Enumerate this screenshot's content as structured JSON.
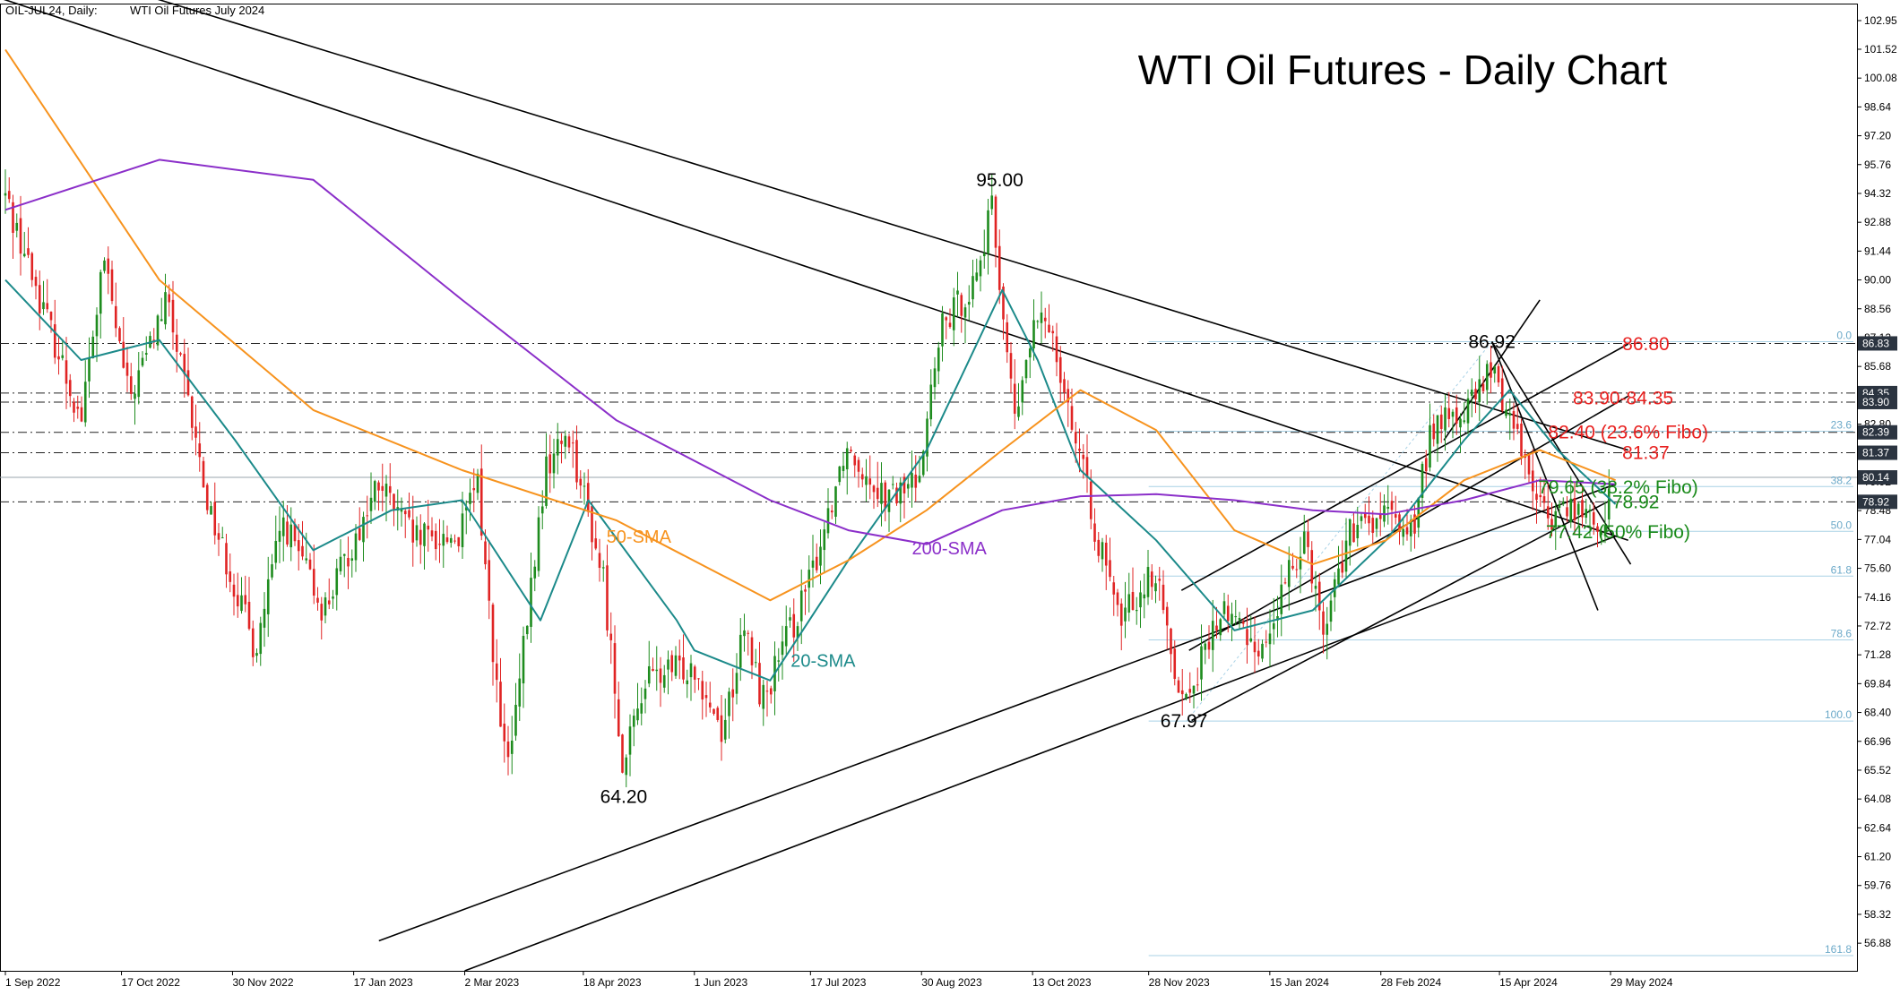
{
  "chart_data": {
    "type": "candlestick",
    "title": "WTI Oil Futures - Daily Chart",
    "header": {
      "symbol": "OIL-JUL24, Daily:",
      "description": "WTI Oil Futures July 2024"
    },
    "x_ticks": [
      "1 Sep 2022",
      "17 Oct 2022",
      "30 Nov 2022",
      "17 Jan 2023",
      "2 Mar 2023",
      "18 Apr 2023",
      "1 Jun 2023",
      "17 Jul 2023",
      "30 Aug 2023",
      "13 Oct 2023",
      "28 Nov 2023",
      "15 Jan 2024",
      "28 Feb 2024",
      "15 Apr 2024",
      "29 May 2024"
    ],
    "y_range": [
      55.5,
      103.8
    ],
    "y_ticks": [
      102.95,
      101.52,
      100.08,
      98.64,
      97.2,
      95.76,
      94.32,
      92.88,
      91.44,
      90.0,
      88.56,
      87.12,
      85.68,
      84.24,
      82.8,
      81.36,
      79.92,
      78.48,
      77.04,
      75.6,
      74.16,
      72.72,
      71.28,
      69.84,
      68.4,
      66.96,
      65.52,
      64.08,
      62.64,
      61.2,
      59.76,
      58.32,
      56.88
    ],
    "price_marks": [
      {
        "label": "86.83",
        "value": 86.83
      },
      {
        "label": "84.35",
        "value": 84.35
      },
      {
        "label": "83.90",
        "value": 83.9
      },
      {
        "label": "82.39",
        "value": 82.39
      },
      {
        "label": "81.37",
        "value": 81.37
      },
      {
        "label": "80.14",
        "value": 80.14
      },
      {
        "label": "78.92",
        "value": 78.92
      }
    ],
    "anchors": [
      {
        "date": "1 Sep 2022",
        "value": 94.2
      },
      {
        "date": "1 Oct 2022",
        "value": 83.0
      },
      {
        "date": "10 Oct 2022",
        "value": 91.0
      },
      {
        "date": "20 Oct 2022",
        "value": 84.0
      },
      {
        "date": "4 Nov 2022",
        "value": 89.0
      },
      {
        "date": "20 Nov 2022",
        "value": 79.0
      },
      {
        "date": "9 Dec 2022",
        "value": 71.5
      },
      {
        "date": "20 Dec 2022",
        "value": 78.0
      },
      {
        "date": "5 Jan 2023",
        "value": 73.5
      },
      {
        "date": "27 Jan 2023",
        "value": 79.8
      },
      {
        "date": "10 Feb 2023",
        "value": 77.0
      },
      {
        "date": "28 Feb 2023",
        "value": 77.2
      },
      {
        "date": "7 Mar 2023",
        "value": 80.0
      },
      {
        "date": "17 Mar 2023",
        "value": 66.5
      },
      {
        "date": "20 Mar 2023",
        "value": 66.0
      },
      {
        "date": "3 Apr 2023",
        "value": 80.5
      },
      {
        "date": "12 Apr 2023",
        "value": 82.5
      },
      {
        "date": "26 Apr 2023",
        "value": 75.0
      },
      {
        "date": "4 May 2023",
        "value": 65.5
      },
      {
        "date": "12 May 2023",
        "value": 70.0
      },
      {
        "date": "1 Jun 2023",
        "value": 70.8
      },
      {
        "date": "12 Jun 2023",
        "value": 67.5
      },
      {
        "date": "21 Jun 2023",
        "value": 72.5
      },
      {
        "date": "28 Jun 2023",
        "value": 69.0
      },
      {
        "date": "17 Jul 2023",
        "value": 75.0
      },
      {
        "date": "31 Jul 2023",
        "value": 81.8
      },
      {
        "date": "17 Aug 2023",
        "value": 79.0
      },
      {
        "date": "28 Aug 2023",
        "value": 80.0
      },
      {
        "date": "7 Sep 2023",
        "value": 87.5
      },
      {
        "date": "20 Sep 2023",
        "value": 90.0
      },
      {
        "date": "27 Sep 2023",
        "value": 93.5
      },
      {
        "date": "6 Oct 2023",
        "value": 82.8
      },
      {
        "date": "13 Oct 2023",
        "value": 87.5
      },
      {
        "date": "20 Oct 2023",
        "value": 88.0
      },
      {
        "date": "6 Nov 2023",
        "value": 78.0
      },
      {
        "date": "16 Nov 2023",
        "value": 73.0
      },
      {
        "date": "30 Nov 2023",
        "value": 75.5
      },
      {
        "date": "12 Dec 2023",
        "value": 68.8
      },
      {
        "date": "27 Dec 2023",
        "value": 73.5
      },
      {
        "date": "5 Jan 2024",
        "value": 72.5
      },
      {
        "date": "12 Jan 2024",
        "value": 71.5
      },
      {
        "date": "29 Jan 2024",
        "value": 77.5
      },
      {
        "date": "5 Feb 2024",
        "value": 72.5
      },
      {
        "date": "15 Feb 2024",
        "value": 77.2
      },
      {
        "date": "29 Feb 2024",
        "value": 78.2
      },
      {
        "date": "12 Mar 2024",
        "value": 77.5
      },
      {
        "date": "19 Mar 2024",
        "value": 82.7
      },
      {
        "date": "1 Apr 2024",
        "value": 83.3
      },
      {
        "date": "12 Apr 2024",
        "value": 85.5
      },
      {
        "date": "23 Apr 2024",
        "value": 82.0
      },
      {
        "date": "3 May 2024",
        "value": 78.1
      },
      {
        "date": "15 May 2024",
        "value": 78.8
      },
      {
        "date": "24 May 2024",
        "value": 77.5
      },
      {
        "date": "31 May 2024",
        "value": 79.9
      }
    ],
    "sma": [
      {
        "name": "20-SMA",
        "color": "#1c8a8a",
        "points": [
          [
            90.0,
            "1 Sep 2022"
          ],
          [
            86.0,
            "1 Oct 2022"
          ],
          [
            87.0,
            "1 Nov 2022"
          ],
          [
            82.0,
            "1 Dec 2022"
          ],
          [
            76.5,
            "1 Jan 2023"
          ],
          [
            78.5,
            "1 Feb 2023"
          ],
          [
            79.0,
            "1 Mar 2023"
          ],
          [
            73.0,
            "1 Apr 2023"
          ],
          [
            79.0,
            "20 Apr 2023"
          ],
          [
            73.0,
            "25 May 2023"
          ],
          [
            71.5,
            "1 Jun 2023"
          ],
          [
            70.0,
            "1 Jul 2023"
          ],
          [
            76.0,
            "1 Aug 2023"
          ],
          [
            81.5,
            "1 Sep 2023"
          ],
          [
            89.5,
            "1 Oct 2023"
          ],
          [
            86.0,
            "15 Oct 2023"
          ],
          [
            80.5,
            "1 Nov 2023"
          ],
          [
            77.0,
            "1 Dec 2023"
          ],
          [
            72.5,
            "1 Jan 2024"
          ],
          [
            73.5,
            "1 Feb 2024"
          ],
          [
            77.0,
            "1 Mar 2024"
          ],
          [
            82.0,
            "1 Apr 2024"
          ],
          [
            84.5,
            "19 Apr 2024"
          ],
          [
            81.5,
            "8 May 2024"
          ],
          [
            78.8,
            "31 May 2024"
          ]
        ]
      },
      {
        "name": "50-SMA",
        "color": "#f7931e",
        "points": [
          [
            101.5,
            "1 Sep 2022"
          ],
          [
            90.0,
            "1 Nov 2022"
          ],
          [
            83.5,
            "1 Jan 2023"
          ],
          [
            80.5,
            "1 Mar 2023"
          ],
          [
            78.0,
            "1 May 2023"
          ],
          [
            74.0,
            "1 Jul 2023"
          ],
          [
            76.0,
            "1 Aug 2023"
          ],
          [
            78.5,
            "1 Sep 2023"
          ],
          [
            81.5,
            "1 Oct 2023"
          ],
          [
            84.5,
            "1 Nov 2023"
          ],
          [
            82.5,
            "1 Dec 2023"
          ],
          [
            77.5,
            "1 Jan 2024"
          ],
          [
            75.8,
            "1 Feb 2024"
          ],
          [
            77.0,
            "1 Mar 2024"
          ],
          [
            80.0,
            "1 Apr 2024"
          ],
          [
            81.5,
            "1 May 2024"
          ],
          [
            80.0,
            "31 May 2024"
          ]
        ]
      },
      {
        "name": "200-SMA",
        "color": "#8b2fc9",
        "points": [
          [
            93.5,
            "1 Sep 2022"
          ],
          [
            96.0,
            "1 Nov 2022"
          ],
          [
            95.0,
            "1 Jan 2023"
          ],
          [
            89.0,
            "1 Mar 2023"
          ],
          [
            83.0,
            "1 May 2023"
          ],
          [
            79.0,
            "1 Jul 2023"
          ],
          [
            77.5,
            "1 Aug 2023"
          ],
          [
            76.8,
            "1 Sep 2023"
          ],
          [
            78.5,
            "1 Oct 2023"
          ],
          [
            79.2,
            "1 Nov 2023"
          ],
          [
            79.3,
            "1 Dec 2023"
          ],
          [
            79.0,
            "1 Jan 2024"
          ],
          [
            78.5,
            "1 Feb 2024"
          ],
          [
            78.3,
            "1 Mar 2024"
          ],
          [
            79.0,
            "1 Apr 2024"
          ],
          [
            80.0,
            "1 May 2024"
          ],
          [
            79.8,
            "31 May 2024"
          ]
        ]
      }
    ],
    "horizontal_levels": [
      86.83,
      84.35,
      83.9,
      82.39,
      81.37,
      78.92
    ],
    "fibonacci": {
      "from_date": "13 Dec 2023",
      "to_date": "12 Apr 2024",
      "low": 67.97,
      "high": 86.92,
      "levels": [
        "0.0",
        "23.6",
        "38.2",
        "50.0",
        "61.8",
        "78.6",
        "100.0",
        "161.8"
      ]
    },
    "trendlines": [
      {
        "from": [
          "27 Jan 2023",
          57.0
        ],
        "to": [
          "31 May 2024",
          79.8
        ]
      },
      {
        "from": [
          "2 Mar 2023",
          55.5
        ],
        "to": [
          "31 May 2024",
          77.2
        ]
      },
      {
        "from": [
          "15 Jul 2022",
          106.0
        ],
        "to": [
          "5 Jun 2024",
          77.0
        ]
      },
      {
        "from": [
          "10 Sep 2022",
          106.0
        ],
        "to": [
          "5 Jun 2024",
          81.5
        ]
      },
      {
        "from": [
          "11 Dec 2023",
          74.5
        ],
        "to": [
          "5 Jun 2024",
          86.8
        ]
      },
      {
        "from": [
          "14 Dec 2023",
          71.5
        ],
        "to": [
          "5 Jun 2024",
          84.2
        ]
      },
      {
        "from": [
          "15 Dec 2023",
          68.0
        ],
        "to": [
          "29 May 2024",
          79.0
        ]
      },
      {
        "from": [
          "12 Apr 2024",
          86.92
        ],
        "to": [
          "24 May 2024",
          73.5
        ]
      },
      {
        "from": [
          "12 Apr 2024",
          86.92
        ],
        "to": [
          "6 Jun 2024",
          75.8
        ]
      },
      {
        "from": [
          "24 Mar 2024",
          82.0
        ],
        "to": [
          "1 May 2024",
          89.0
        ]
      }
    ],
    "annotations": [
      {
        "text": "95.00",
        "date": "30 Sep 2023",
        "value": 95.0,
        "color": "#000000"
      },
      {
        "text": "86.92",
        "date": "12 Apr 2024",
        "value": 86.92,
        "color": "#000000"
      },
      {
        "text": "64.20",
        "date": "4 May 2023",
        "value": 64.2,
        "color": "#000000"
      },
      {
        "text": "67.97",
        "date": "12 Dec 2023",
        "value": 67.97,
        "color": "#000000"
      },
      {
        "text": "86.80",
        "date": "12 Jun 2024",
        "value": 86.8,
        "color": "#e8201f"
      },
      {
        "text": "83.90-84.35",
        "date": "3 Jun 2024",
        "value": 84.1,
        "color": "#e8201f"
      },
      {
        "text": "82.40 (23.6% Fibo)",
        "date": "5 Jun 2024",
        "value": 82.4,
        "color": "#e8201f"
      },
      {
        "text": "81.37",
        "date": "12 Jun 2024",
        "value": 81.37,
        "color": "#e8201f"
      },
      {
        "text": "79.65 (38.2% Fibo)",
        "date": "1 Jun 2024",
        "value": 79.65,
        "color": "#1a8a1a"
      },
      {
        "text": "78.92",
        "date": "8 Jun 2024",
        "value": 78.92,
        "color": "#1a8a1a"
      },
      {
        "text": "77.42 (50% Fibo)",
        "date": "1 Jun 2024",
        "value": 77.42,
        "color": "#1a8a1a"
      },
      {
        "text": "50-SMA",
        "date": "10 May 2023",
        "value": 77.2,
        "color": "#f7931e"
      },
      {
        "text": "200-SMA",
        "date": "10 Sep 2023",
        "value": 76.6,
        "color": "#8b2fc9"
      },
      {
        "text": "20-SMA",
        "date": "22 Jul 2023",
        "value": 71.0,
        "color": "#1c8a8a"
      }
    ]
  }
}
